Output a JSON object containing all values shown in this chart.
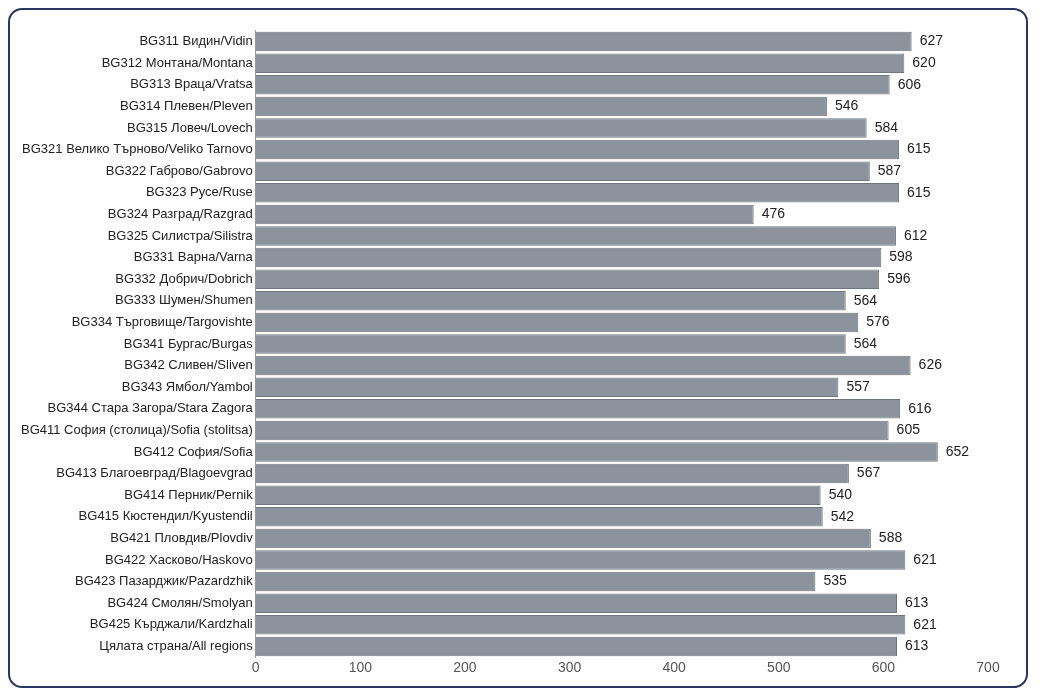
{
  "chart_data": {
    "type": "bar",
    "orientation": "horizontal",
    "categories": [
      "BG311 Видин/Vidin",
      "BG312 Монтана/Montana",
      "BG313 Враца/Vratsa",
      "BG314 Плевен/Pleven",
      "BG315 Ловеч/Lovech",
      "BG321 Велико Търново/Veliko Tarnovo",
      "BG322 Габрово/Gabrovo",
      "BG323 Русе/Ruse",
      "BG324 Разград/Razgrad",
      "BG325 Силистра/Silistra",
      "BG331 Варна/Varna",
      "BG332 Добрич/Dobrich",
      "BG333 Шумен/Shumen",
      "BG334 Търговище/Targovishte",
      "BG341 Бургас/Burgas",
      "BG342 Сливен/Sliven",
      "BG343 Ямбол/Yambol",
      "BG344 Стара Загора/Stara Zagora",
      "BG411 София (столица)/Sofia (stolitsa)",
      "BG412 София/Sofia",
      "BG413 Благоевград/Blagoevgrad",
      "BG414 Перник/Pernik",
      "BG415 Кюстендил/Kyustendil",
      "BG421 Пловдив/Plovdiv",
      "BG422 Хасково/Haskovo",
      "BG423 Пазарджик/Pazardzhik",
      "BG424 Смолян/Smolyan",
      "BG425 Кърджали/Kardzhali",
      "Цялата страна/All regions"
    ],
    "values": [
      627,
      620,
      606,
      546,
      584,
      615,
      587,
      615,
      476,
      612,
      598,
      596,
      564,
      576,
      564,
      626,
      557,
      616,
      605,
      652,
      567,
      540,
      542,
      588,
      621,
      535,
      613,
      621,
      613
    ],
    "color": "#8c939c",
    "xlim": [
      0,
      700
    ],
    "xticks": [
      0,
      100,
      200,
      300,
      400,
      500,
      600,
      700
    ],
    "grid": false,
    "data_labels": true
  }
}
